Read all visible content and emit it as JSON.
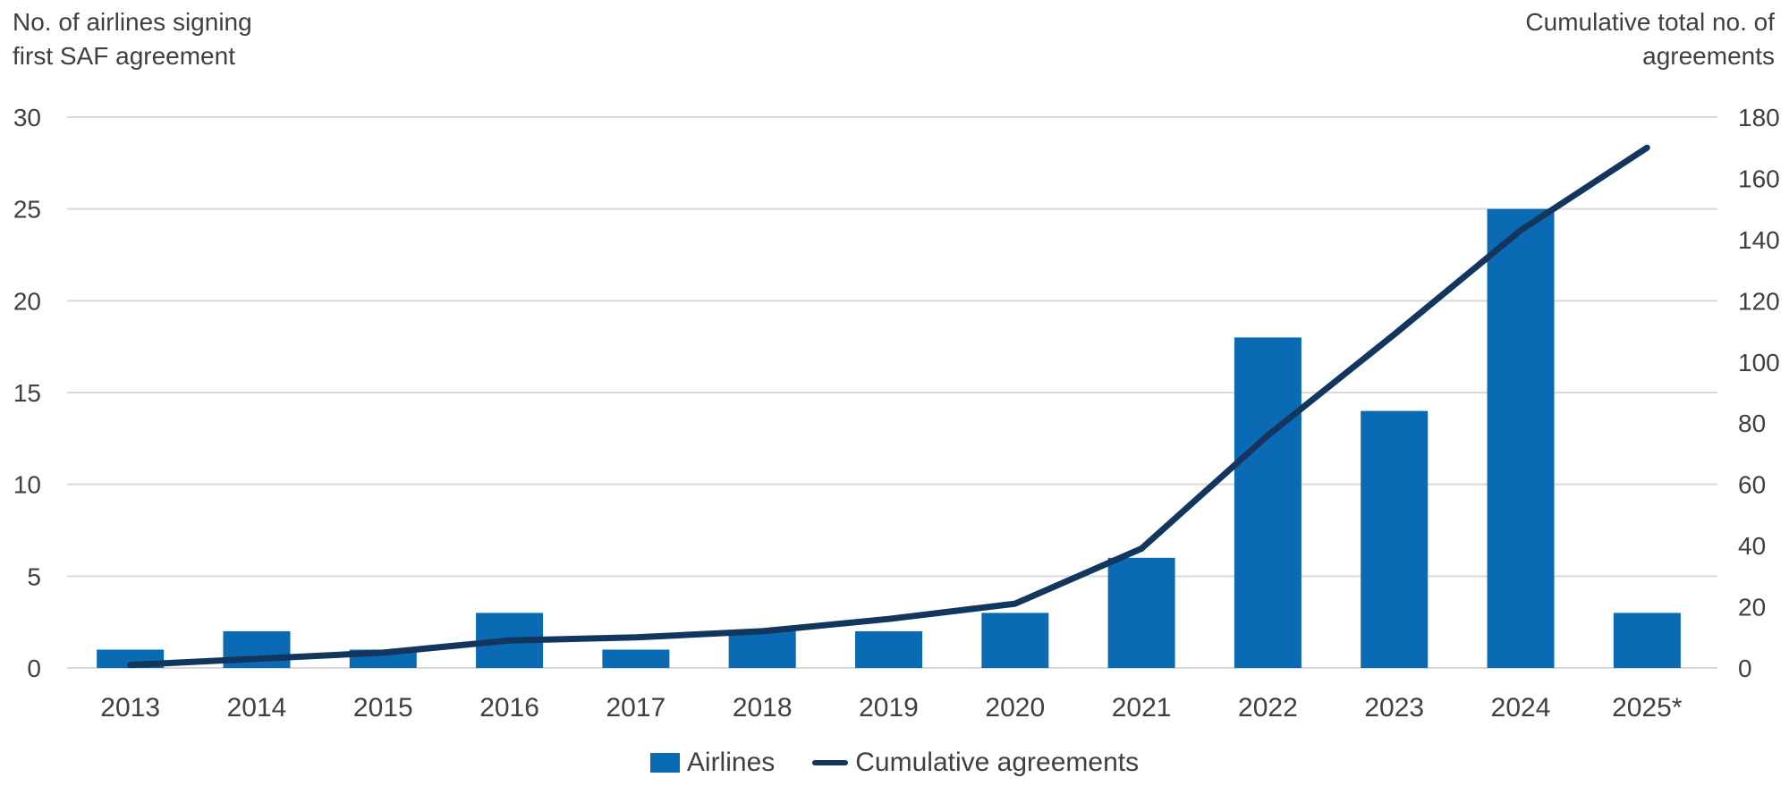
{
  "chart_data": {
    "type": "combo",
    "title": "",
    "categories": [
      "2013",
      "2014",
      "2015",
      "2016",
      "2017",
      "2018",
      "2019",
      "2020",
      "2021",
      "2022",
      "2023",
      "2024",
      "2025*"
    ],
    "series": [
      {
        "name": "Airlines",
        "type": "bar",
        "axis": "left",
        "values": [
          1,
          2,
          1,
          3,
          1,
          2,
          2,
          3,
          6,
          18,
          14,
          25,
          3
        ]
      },
      {
        "name": "Cumulative agreements",
        "type": "line",
        "axis": "right",
        "values": [
          1,
          3,
          5,
          9,
          10,
          12,
          16,
          21,
          39,
          76,
          109,
          143,
          170
        ]
      }
    ],
    "left_axis": {
      "title_lines": [
        "No. of airlines signing",
        "first SAF agreement"
      ],
      "min": 0,
      "max": 30,
      "step": 5,
      "tick_labels": [
        "0",
        "5",
        "10",
        "15",
        "20",
        "25",
        "30"
      ]
    },
    "right_axis": {
      "title_lines": [
        "Cumulative total no. of",
        "agreements"
      ],
      "min": 0,
      "max": 180,
      "step": 20,
      "tick_labels": [
        "0",
        "20",
        "40",
        "60",
        "80",
        "100",
        "120",
        "140",
        "160",
        "180"
      ]
    },
    "grid": true,
    "legend_position": "bottom"
  },
  "colors": {
    "bar": "#0b6ab4",
    "line": "#13365e",
    "grid": "#d9d9d9",
    "text": "#404040",
    "background": "#ffffff"
  }
}
